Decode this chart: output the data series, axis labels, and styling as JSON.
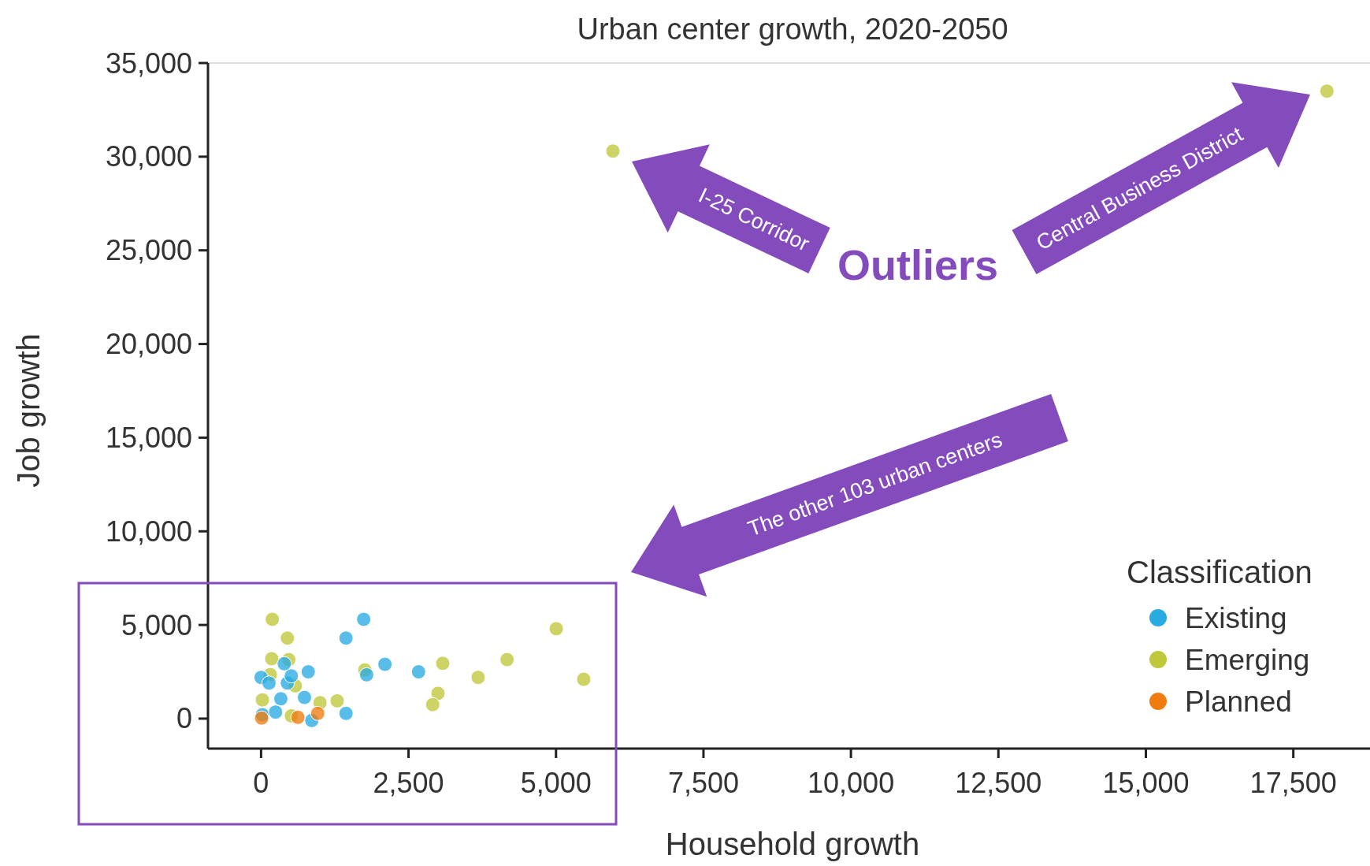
{
  "chart_data": {
    "type": "scatter",
    "title": "Urban center growth, 2020-2050",
    "xlabel": "Household growth",
    "ylabel": "Job growth",
    "legend_title": "Classification",
    "legend": "bottom right",
    "marker": "circle",
    "xlim": [
      -900,
      18800
    ],
    "ylim": [
      -1600,
      35000
    ],
    "xticks": [
      0,
      {
        "value": 2500,
        "label": "2,500"
      },
      {
        "value": 5000,
        "label": "5,000"
      },
      {
        "value": 7500,
        "label": "7,500"
      },
      {
        "value": 10000,
        "label": "10,000"
      },
      {
        "value": 12500,
        "label": "12,500"
      },
      {
        "value": 15000,
        "label": "15,000"
      },
      {
        "value": 17500,
        "label": "17,500"
      }
    ],
    "yticks": [
      0,
      {
        "value": 5000,
        "label": "5,000"
      },
      {
        "value": 10000,
        "label": "10,000"
      },
      {
        "value": 15000,
        "label": "15,000"
      },
      {
        "value": 20000,
        "label": "20,000"
      },
      {
        "value": 25000,
        "label": "25,000"
      },
      {
        "value": 30000,
        "label": "30,000"
      },
      {
        "value": 35000,
        "label": "35,000"
      }
    ],
    "annotations": [
      "Outliers",
      "I-25 Corridor",
      "Central Business District",
      "The other 103 urban centers"
    ],
    "series": [
      {
        "name": "Existing",
        "color": "#29abe2",
        "x": [
          1740,
          1440,
          2100,
          2670,
          1790,
          1440,
          800,
          393,
          0,
          135,
          446,
          335,
          736,
          23,
          246,
          513,
          860
        ],
        "values": [
          5300,
          4300,
          2900,
          2500,
          2340,
          280,
          2500,
          2930,
          2200,
          1900,
          1900,
          1060,
          1130,
          210,
          350,
          2280,
          -100
        ]
      },
      {
        "name": "Emerging",
        "color": "#bfc73a",
        "x": [
          190,
          446,
          5005,
          5470,
          4170,
          3680,
          3080,
          3000,
          2910,
          1760,
          180,
          470,
          157,
          580,
          23,
          1000,
          513,
          1290,
          5965,
          18070
        ],
        "values": [
          5300,
          4300,
          4800,
          2100,
          3150,
          2200,
          2950,
          1350,
          750,
          2600,
          3200,
          3150,
          2350,
          1750,
          1000,
          850,
          150,
          950,
          30300,
          33500
        ]
      },
      {
        "name": "Planned",
        "color": "#f07c10",
        "x": [
          10,
          625,
          960
        ],
        "values": [
          30,
          70,
          280
        ]
      }
    ]
  }
}
